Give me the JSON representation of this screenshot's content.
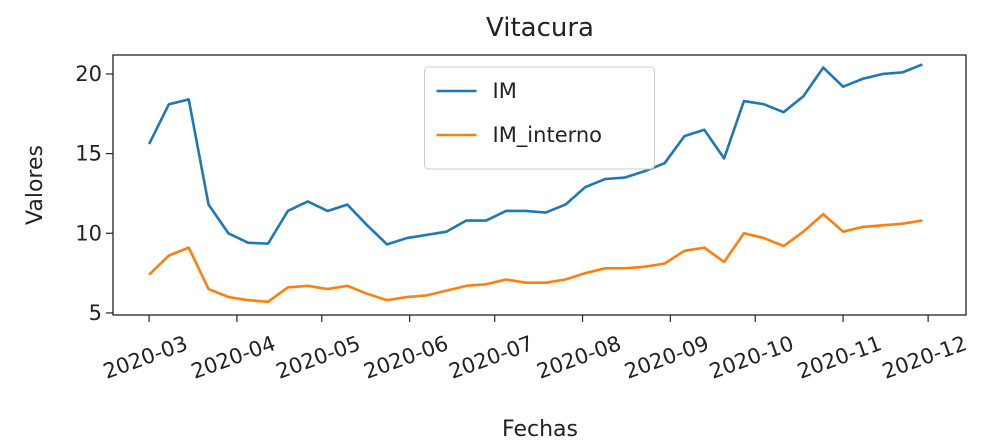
{
  "chart_data": {
    "type": "line",
    "title": "Vitacura",
    "xlabel": "Fechas",
    "ylabel": "Valores",
    "x": [
      0,
      1,
      2,
      3,
      4,
      5,
      6,
      7,
      8,
      9,
      10,
      11,
      12,
      13,
      14,
      15,
      16,
      17,
      18,
      19,
      20,
      21,
      22,
      23,
      24,
      25,
      26,
      27,
      28,
      29,
      30,
      31,
      32,
      33,
      34,
      35,
      36,
      37,
      38,
      39
    ],
    "series": [
      {
        "name": "IM",
        "color": "#1f77b4",
        "values": [
          15.6,
          18.1,
          18.4,
          11.8,
          10.0,
          9.4,
          9.35,
          11.4,
          12.0,
          11.4,
          11.8,
          10.5,
          9.3,
          9.7,
          9.9,
          10.1,
          10.8,
          10.8,
          11.4,
          11.4,
          11.3,
          11.8,
          12.9,
          13.4,
          13.5,
          13.9,
          14.4,
          16.1,
          16.5,
          14.7,
          18.3,
          18.1,
          17.6,
          18.6,
          20.4,
          19.2,
          19.7,
          20.0,
          20.1,
          20.6
        ]
      },
      {
        "name": "IM_interno",
        "color": "#ff7f0e",
        "values": [
          7.4,
          8.6,
          9.1,
          6.5,
          6.0,
          5.8,
          5.7,
          6.6,
          6.7,
          6.5,
          6.7,
          6.2,
          5.8,
          6.0,
          6.1,
          6.4,
          6.7,
          6.8,
          7.1,
          6.9,
          6.9,
          7.1,
          7.5,
          7.8,
          7.8,
          7.9,
          8.1,
          8.9,
          9.1,
          8.2,
          10.0,
          9.7,
          9.2,
          10.1,
          11.2,
          10.1,
          10.4,
          10.5,
          10.6,
          10.8
        ]
      }
    ],
    "xlim": [
      -1.82,
      41.2
    ],
    "xticks": [
      {
        "value": 0,
        "label": "2020-03"
      },
      {
        "value": 4.43,
        "label": "2020-04"
      },
      {
        "value": 8.71,
        "label": "2020-05"
      },
      {
        "value": 13.14,
        "label": "2020-06"
      },
      {
        "value": 17.43,
        "label": "2020-07"
      },
      {
        "value": 21.86,
        "label": "2020-08"
      },
      {
        "value": 26.29,
        "label": "2020-09"
      },
      {
        "value": 30.57,
        "label": "2020-10"
      },
      {
        "value": 35,
        "label": "2020-11"
      },
      {
        "value": 39.29,
        "label": "2020-12"
      }
    ],
    "ylim": [
      4.87,
      21.19
    ],
    "yticks": [
      5,
      10,
      15,
      20
    ],
    "legend": "upper center"
  }
}
